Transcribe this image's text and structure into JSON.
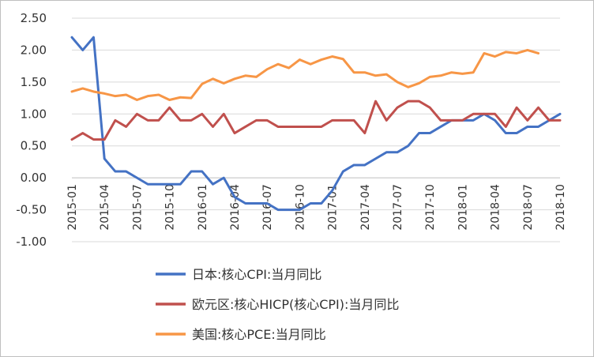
{
  "chart_data": {
    "type": "line",
    "title": "",
    "xlabel": "",
    "ylabel": "",
    "ylim": [
      -1.0,
      2.5
    ],
    "yticks": [
      "2.50",
      "2.00",
      "1.50",
      "1.00",
      "0.50",
      "0.00",
      "-0.50",
      "-1.00"
    ],
    "ytick_values": [
      2.5,
      2.0,
      1.5,
      1.0,
      0.5,
      0.0,
      -0.5,
      -1.0
    ],
    "xtick_labels": [
      "2015-01",
      "2015-04",
      "2015-07",
      "2015-10",
      "2016-01",
      "2016-04",
      "2016-07",
      "2016-10",
      "2017-01",
      "2017-04",
      "2017-07",
      "2017-10",
      "2018-01",
      "2018-04",
      "2018-07",
      "2018-10"
    ],
    "grid": "horizontal",
    "legend_position": "bottom",
    "n_periods": 46,
    "series": [
      {
        "name": "日本:核心CPI:当月同比",
        "color": "#4472C4",
        "values": [
          2.2,
          2.0,
          2.2,
          0.3,
          0.1,
          0.1,
          0.0,
          -0.1,
          -0.1,
          -0.1,
          -0.1,
          0.1,
          0.1,
          -0.1,
          0.0,
          -0.3,
          -0.4,
          -0.4,
          -0.4,
          -0.5,
          -0.5,
          -0.5,
          -0.4,
          -0.4,
          -0.2,
          0.1,
          0.2,
          0.2,
          0.3,
          0.4,
          0.4,
          0.5,
          0.7,
          0.7,
          0.8,
          0.9,
          0.9,
          0.9,
          1.0,
          0.9,
          0.7,
          0.7,
          0.8,
          0.8,
          0.9,
          1.0
        ]
      },
      {
        "name": "欧元区:核心HICP(核心CPI):当月同比",
        "color": "#C0504D",
        "values": [
          0.6,
          0.7,
          0.6,
          0.6,
          0.9,
          0.8,
          1.0,
          0.9,
          0.9,
          1.1,
          0.9,
          0.9,
          1.0,
          0.8,
          1.0,
          0.7,
          0.8,
          0.9,
          0.9,
          0.8,
          0.8,
          0.8,
          0.8,
          0.8,
          0.9,
          0.9,
          0.9,
          0.7,
          1.2,
          0.9,
          1.1,
          1.2,
          1.2,
          1.1,
          0.9,
          0.9,
          0.9,
          1.0,
          1.0,
          1.0,
          0.8,
          1.1,
          0.9,
          1.1,
          0.9,
          0.9
        ]
      },
      {
        "name": "美国:核心PCE:当月同比",
        "color": "#F79646",
        "values": [
          1.35,
          1.4,
          1.35,
          1.32,
          1.28,
          1.3,
          1.22,
          1.28,
          1.3,
          1.22,
          1.26,
          1.25,
          1.47,
          1.55,
          1.48,
          1.55,
          1.6,
          1.58,
          1.7,
          1.78,
          1.72,
          1.85,
          1.78,
          1.85,
          1.9,
          1.86,
          1.65,
          1.65,
          1.6,
          1.62,
          1.5,
          1.42,
          1.48,
          1.58,
          1.6,
          1.65,
          1.63,
          1.65,
          1.95,
          1.9,
          1.97,
          1.95,
          2.0,
          1.95
        ]
      }
    ]
  }
}
